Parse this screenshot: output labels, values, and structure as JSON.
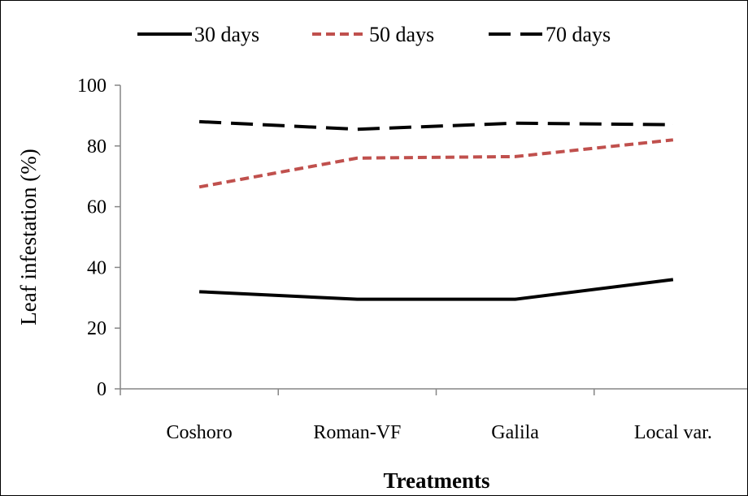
{
  "chart_data": {
    "type": "line",
    "categories": [
      "Coshoro",
      "Roman-VF",
      "Galila",
      "Local var."
    ],
    "series": [
      {
        "name": "30 days",
        "values": [
          32,
          29.5,
          29.5,
          36
        ],
        "color": "#000000",
        "style": "solid"
      },
      {
        "name": "50 days",
        "values": [
          66.5,
          76,
          76.5,
          82
        ],
        "color": "#c0504d",
        "style": "short-dash"
      },
      {
        "name": "70 days",
        "values": [
          88,
          85.5,
          87.5,
          87
        ],
        "color": "#000000",
        "style": "long-dash"
      }
    ],
    "xlabel": "Treatments",
    "ylabel": "Leaf infestation (%)",
    "ylim": [
      0,
      100
    ],
    "yticks": [
      0,
      20,
      40,
      60,
      80,
      100
    ],
    "legend": "top",
    "grid": false
  }
}
